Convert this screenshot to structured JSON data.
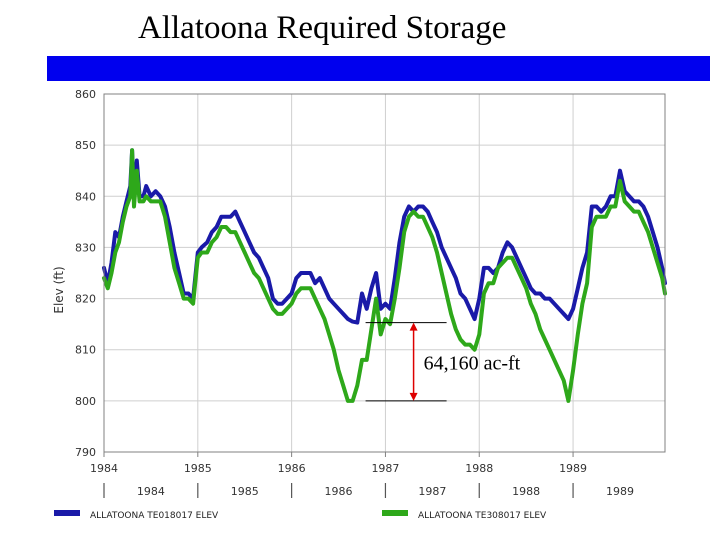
{
  "slide": {
    "title": "Allatoona Required Storage",
    "accent_color": "#0000ee"
  },
  "chart_data": {
    "type": "line",
    "ylabel": "Elev (ft)",
    "ylim": [
      790,
      860
    ],
    "yticks": [
      860,
      850,
      840,
      830,
      820,
      810,
      800,
      790
    ],
    "xlim": [
      1984.0,
      1989.98
    ],
    "xticks": [
      "1984",
      "1985",
      "1986",
      "1987",
      "1988",
      "1989"
    ],
    "x_period_labels": [
      "1984",
      "1985",
      "1986",
      "1987",
      "1988",
      "1989"
    ],
    "grid": true,
    "legend_position": "bottom",
    "annotation": {
      "text": "64,160 ac-ft",
      "x": 1987.3,
      "y_from": 815.3,
      "y_to": 800,
      "color": "#dd0000"
    },
    "series": [
      {
        "name": "ALLATOONA TE018017 ELEV",
        "color": "#1a1aa8",
        "x": [
          1984.0,
          1984.04,
          1984.08,
          1984.12,
          1984.16,
          1984.2,
          1984.24,
          1984.28,
          1984.3,
          1984.32,
          1984.35,
          1984.38,
          1984.42,
          1984.45,
          1984.5,
          1984.55,
          1984.6,
          1984.65,
          1984.7,
          1984.75,
          1984.8,
          1984.85,
          1984.9,
          1984.95,
          1985.0,
          1985.04,
          1985.1,
          1985.15,
          1985.2,
          1985.25,
          1985.3,
          1985.35,
          1985.4,
          1985.45,
          1985.5,
          1985.55,
          1985.6,
          1985.65,
          1985.7,
          1985.75,
          1985.8,
          1985.85,
          1985.9,
          1985.95,
          1986.0,
          1986.05,
          1986.1,
          1986.15,
          1986.2,
          1986.25,
          1986.3,
          1986.35,
          1986.4,
          1986.45,
          1986.5,
          1986.55,
          1986.6,
          1986.65,
          1986.7,
          1986.75,
          1986.8,
          1986.85,
          1986.9,
          1986.95,
          1987.0,
          1987.05,
          1987.1,
          1987.15,
          1987.2,
          1987.25,
          1987.3,
          1987.35,
          1987.4,
          1987.45,
          1987.5,
          1987.55,
          1987.6,
          1987.65,
          1987.7,
          1987.75,
          1987.8,
          1987.85,
          1987.9,
          1987.95,
          1988.0,
          1988.05,
          1988.1,
          1988.15,
          1988.2,
          1988.25,
          1988.3,
          1988.35,
          1988.4,
          1988.45,
          1988.5,
          1988.55,
          1988.6,
          1988.65,
          1988.7,
          1988.75,
          1988.8,
          1988.85,
          1988.9,
          1988.95,
          1989.0,
          1989.05,
          1989.1,
          1989.15,
          1989.2,
          1989.25,
          1989.3,
          1989.35,
          1989.4,
          1989.45,
          1989.5,
          1989.55,
          1989.6,
          1989.65,
          1989.7,
          1989.75,
          1989.8,
          1989.85,
          1989.9,
          1989.95,
          1989.98
        ],
        "y": [
          826,
          823,
          827,
          833,
          832,
          836,
          839,
          842,
          849,
          840,
          847,
          840,
          840,
          842,
          840,
          841,
          840,
          838,
          834,
          829,
          825,
          821,
          821,
          820,
          829,
          830,
          831,
          833,
          834,
          836,
          836,
          836,
          837,
          835,
          833,
          831,
          829,
          828,
          826,
          824,
          820,
          819,
          819,
          820,
          821,
          824,
          825,
          825,
          825,
          823,
          824,
          822,
          820,
          819,
          818,
          817,
          816,
          815.5,
          815.3,
          821,
          818,
          822,
          825,
          818,
          819,
          818,
          824,
          831,
          836,
          838,
          837,
          838,
          838,
          837,
          835,
          833,
          830,
          828,
          826,
          824,
          821,
          820,
          818,
          816,
          820,
          826,
          826,
          825,
          826,
          829,
          831,
          830,
          828,
          826,
          824,
          822,
          821,
          821,
          820,
          820,
          819,
          818,
          817,
          816,
          818,
          822,
          826,
          829,
          838,
          838,
          837,
          838,
          840,
          840,
          845,
          841,
          840,
          839,
          839,
          838,
          836,
          833,
          830,
          826,
          823
        ]
      },
      {
        "name": "ALLATOONA TE308017 ELEV",
        "color": "#2ea81a",
        "x": [
          1984.0,
          1984.04,
          1984.08,
          1984.12,
          1984.16,
          1984.2,
          1984.24,
          1984.28,
          1984.3,
          1984.32,
          1984.35,
          1984.38,
          1984.42,
          1984.45,
          1984.5,
          1984.55,
          1984.6,
          1984.65,
          1984.7,
          1984.75,
          1984.8,
          1984.85,
          1984.9,
          1984.95,
          1985.0,
          1985.04,
          1985.1,
          1985.15,
          1985.2,
          1985.25,
          1985.3,
          1985.35,
          1985.4,
          1985.45,
          1985.5,
          1985.55,
          1985.6,
          1985.65,
          1985.7,
          1985.75,
          1985.8,
          1985.85,
          1985.9,
          1985.95,
          1986.0,
          1986.05,
          1986.1,
          1986.15,
          1986.2,
          1986.25,
          1986.3,
          1986.35,
          1986.4,
          1986.45,
          1986.5,
          1986.55,
          1986.6,
          1986.65,
          1986.7,
          1986.75,
          1986.8,
          1986.85,
          1986.9,
          1986.95,
          1987.0,
          1987.05,
          1987.1,
          1987.15,
          1987.2,
          1987.25,
          1987.3,
          1987.35,
          1987.4,
          1987.45,
          1987.5,
          1987.55,
          1987.6,
          1987.65,
          1987.7,
          1987.75,
          1987.8,
          1987.85,
          1987.9,
          1987.95,
          1988.0,
          1988.05,
          1988.1,
          1988.15,
          1988.2,
          1988.25,
          1988.3,
          1988.35,
          1988.4,
          1988.45,
          1988.5,
          1988.55,
          1988.6,
          1988.65,
          1988.7,
          1988.75,
          1988.8,
          1988.85,
          1988.9,
          1988.95,
          1989.0,
          1989.05,
          1989.1,
          1989.15,
          1989.2,
          1989.25,
          1989.3,
          1989.35,
          1989.4,
          1989.45,
          1989.5,
          1989.55,
          1989.6,
          1989.65,
          1989.7,
          1989.75,
          1989.8,
          1989.85,
          1989.9,
          1989.95,
          1989.98
        ],
        "y": [
          824,
          822,
          825,
          829,
          831,
          835,
          838,
          840,
          849,
          838,
          845,
          839,
          839,
          840,
          839,
          839,
          839,
          836,
          831,
          826,
          823,
          820,
          820,
          819,
          828,
          829,
          829,
          831,
          832,
          834,
          834,
          833,
          833,
          831,
          829,
          827,
          825,
          824,
          822,
          820,
          818,
          817,
          817,
          818,
          819,
          821,
          822,
          822,
          822,
          820,
          818,
          816,
          813,
          810,
          806,
          803,
          800,
          800,
          803,
          808,
          808,
          814,
          820,
          813,
          816,
          815,
          820,
          826,
          833,
          836,
          837,
          836,
          836,
          834,
          832,
          829,
          825,
          821,
          817,
          814,
          812,
          811,
          811,
          810,
          813,
          821,
          823,
          823,
          826,
          827,
          828,
          828,
          826,
          824,
          822,
          819,
          817,
          814,
          812,
          810,
          808,
          806,
          804,
          800,
          806,
          813,
          819,
          823,
          834,
          836,
          836,
          836,
          838,
          838,
          843,
          839,
          838,
          837,
          837,
          835,
          833,
          830,
          827,
          824,
          821
        ]
      }
    ]
  }
}
